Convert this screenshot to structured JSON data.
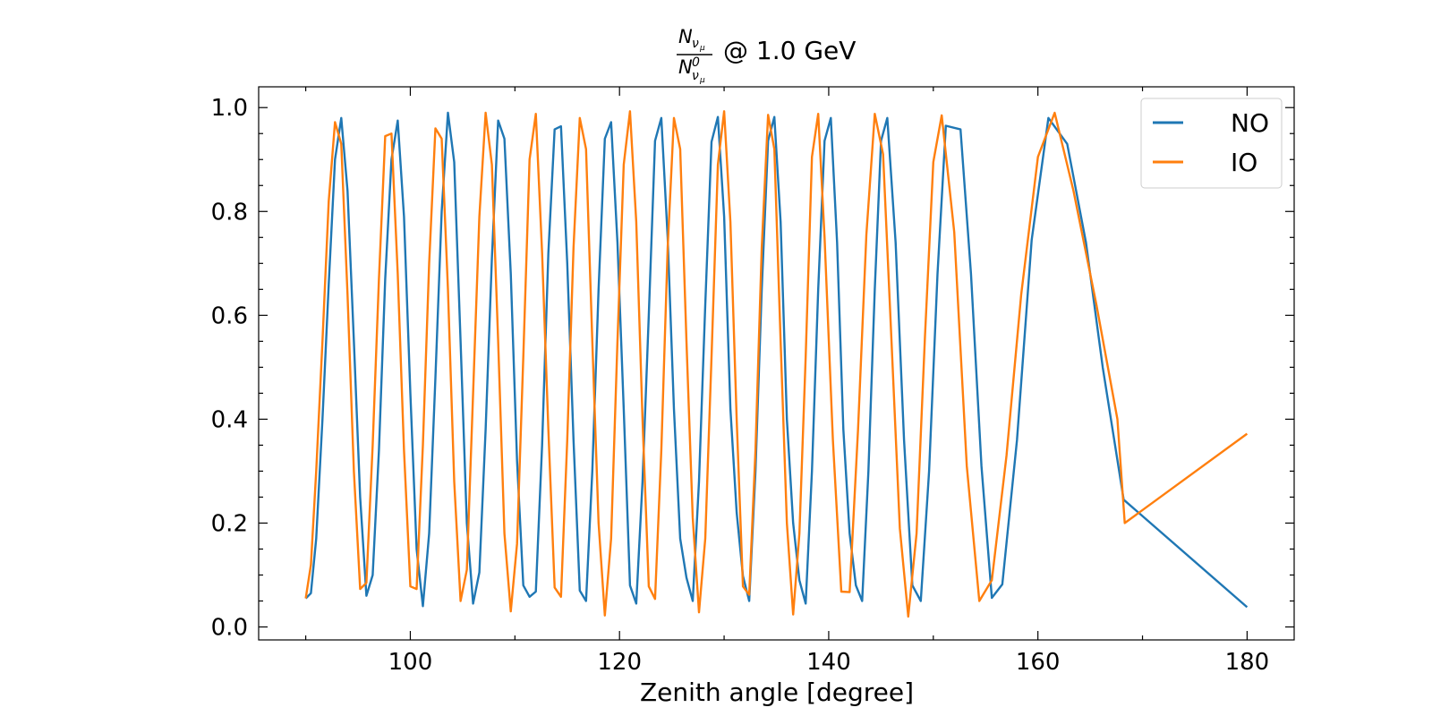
{
  "chart_data": {
    "type": "line",
    "title": {
      "numerator": "N",
      "numerator_sub": "ν",
      "numerator_subsub": "μ",
      "denominator": "N",
      "denominator_sup": "0",
      "denominator_sub": "ν",
      "denominator_subsub": "μ",
      "suffix": "@ 1.0 GeV"
    },
    "xlabel": "Zenith angle [degree]",
    "ylabel": "",
    "xlim": [
      85.5,
      184.5
    ],
    "ylim": [
      -0.025,
      1.04
    ],
    "xticks": [
      100,
      120,
      140,
      160,
      180
    ],
    "yticks": [
      0.0,
      0.2,
      0.4,
      0.6,
      0.8,
      1.0
    ],
    "xtick_labels": [
      "100",
      "120",
      "140",
      "160",
      "180"
    ],
    "ytick_labels": [
      "0.0",
      "0.2",
      "0.4",
      "0.6",
      "0.8",
      "1.0"
    ],
    "grid": false,
    "legend_position": "top-right",
    "series": [
      {
        "name": "NO",
        "color": "#1f77b4",
        "points": [
          [
            90.0,
            0.055
          ],
          [
            90.5,
            0.065
          ],
          [
            91.0,
            0.17
          ],
          [
            91.6,
            0.4
          ],
          [
            92.2,
            0.66
          ],
          [
            92.8,
            0.9
          ],
          [
            93.4,
            0.98
          ],
          [
            94.0,
            0.84
          ],
          [
            94.6,
            0.55
          ],
          [
            95.2,
            0.25
          ],
          [
            95.8,
            0.06
          ],
          [
            96.4,
            0.1
          ],
          [
            97.0,
            0.34
          ],
          [
            97.6,
            0.67
          ],
          [
            98.2,
            0.9
          ],
          [
            98.8,
            0.975
          ],
          [
            99.4,
            0.79
          ],
          [
            100.0,
            0.45
          ],
          [
            100.6,
            0.15
          ],
          [
            101.2,
            0.04
          ],
          [
            101.8,
            0.18
          ],
          [
            102.4,
            0.48
          ],
          [
            103.0,
            0.8
          ],
          [
            103.6,
            0.99
          ],
          [
            104.2,
            0.895
          ],
          [
            104.8,
            0.55
          ],
          [
            105.4,
            0.2
          ],
          [
            106.0,
            0.045
          ],
          [
            106.6,
            0.105
          ],
          [
            107.2,
            0.38
          ],
          [
            107.8,
            0.71
          ],
          [
            108.4,
            0.975
          ],
          [
            109.0,
            0.94
          ],
          [
            109.6,
            0.68
          ],
          [
            110.2,
            0.32
          ],
          [
            110.8,
            0.08
          ],
          [
            111.4,
            0.058
          ],
          [
            112.0,
            0.068
          ],
          [
            112.6,
            0.35
          ],
          [
            113.2,
            0.72
          ],
          [
            113.8,
            0.958
          ],
          [
            114.4,
            0.964
          ],
          [
            115.0,
            0.7
          ],
          [
            115.6,
            0.36
          ],
          [
            116.2,
            0.07
          ],
          [
            116.8,
            0.05
          ],
          [
            117.4,
            0.3
          ],
          [
            118.0,
            0.65
          ],
          [
            118.6,
            0.94
          ],
          [
            119.2,
            0.972
          ],
          [
            119.8,
            0.74
          ],
          [
            120.4,
            0.42
          ],
          [
            121.0,
            0.08
          ],
          [
            121.6,
            0.045
          ],
          [
            122.2,
            0.28
          ],
          [
            122.8,
            0.6
          ],
          [
            123.4,
            0.936
          ],
          [
            124.0,
            0.98
          ],
          [
            124.6,
            0.75
          ],
          [
            125.2,
            0.42
          ],
          [
            125.8,
            0.17
          ],
          [
            126.4,
            0.095
          ],
          [
            127.0,
            0.05
          ],
          [
            127.6,
            0.28
          ],
          [
            128.2,
            0.62
          ],
          [
            128.8,
            0.934
          ],
          [
            129.4,
            0.982
          ],
          [
            130.0,
            0.79
          ],
          [
            130.6,
            0.42
          ],
          [
            131.2,
            0.22
          ],
          [
            131.8,
            0.098
          ],
          [
            132.4,
            0.05
          ],
          [
            133.0,
            0.3
          ],
          [
            133.6,
            0.65
          ],
          [
            134.2,
            0.936
          ],
          [
            134.8,
            0.982
          ],
          [
            135.4,
            0.78
          ],
          [
            136.0,
            0.4
          ],
          [
            136.6,
            0.2
          ],
          [
            137.2,
            0.09
          ],
          [
            137.8,
            0.045
          ],
          [
            138.4,
            0.3
          ],
          [
            139.0,
            0.65
          ],
          [
            139.6,
            0.936
          ],
          [
            140.2,
            0.98
          ],
          [
            140.8,
            0.74
          ],
          [
            141.4,
            0.38
          ],
          [
            142.0,
            0.18
          ],
          [
            142.6,
            0.08
          ],
          [
            143.2,
            0.05
          ],
          [
            143.8,
            0.3
          ],
          [
            144.4,
            0.65
          ],
          [
            145.0,
            0.936
          ],
          [
            145.6,
            0.98
          ],
          [
            146.4,
            0.74
          ],
          [
            147.2,
            0.36
          ],
          [
            148.0,
            0.08
          ],
          [
            148.8,
            0.05
          ],
          [
            149.6,
            0.3
          ],
          [
            150.4,
            0.68
          ],
          [
            151.2,
            0.965
          ],
          [
            152.6,
            0.958
          ],
          [
            153.6,
            0.68
          ],
          [
            154.6,
            0.31
          ],
          [
            155.6,
            0.056
          ],
          [
            156.6,
            0.082
          ],
          [
            158.0,
            0.36
          ],
          [
            159.4,
            0.745
          ],
          [
            161.0,
            0.98
          ],
          [
            162.8,
            0.93
          ],
          [
            164.6,
            0.74
          ],
          [
            166.2,
            0.5
          ],
          [
            168.2,
            0.245
          ],
          [
            180.0,
            0.038
          ]
        ]
      },
      {
        "name": "IO",
        "color": "#ff7f0e",
        "points": [
          [
            90.0,
            0.055
          ],
          [
            90.5,
            0.12
          ],
          [
            91.0,
            0.3
          ],
          [
            91.6,
            0.55
          ],
          [
            92.2,
            0.82
          ],
          [
            92.8,
            0.972
          ],
          [
            93.4,
            0.93
          ],
          [
            94.0,
            0.64
          ],
          [
            94.6,
            0.3
          ],
          [
            95.2,
            0.073
          ],
          [
            95.8,
            0.085
          ],
          [
            96.4,
            0.35
          ],
          [
            97.0,
            0.67
          ],
          [
            97.6,
            0.945
          ],
          [
            98.2,
            0.95
          ],
          [
            98.8,
            0.68
          ],
          [
            99.4,
            0.34
          ],
          [
            100.0,
            0.078
          ],
          [
            100.6,
            0.073
          ],
          [
            101.2,
            0.35
          ],
          [
            101.8,
            0.7
          ],
          [
            102.4,
            0.96
          ],
          [
            103.0,
            0.94
          ],
          [
            103.6,
            0.65
          ],
          [
            104.2,
            0.28
          ],
          [
            104.8,
            0.05
          ],
          [
            105.4,
            0.11
          ],
          [
            106.0,
            0.45
          ],
          [
            106.6,
            0.79
          ],
          [
            107.2,
            0.99
          ],
          [
            107.8,
            0.89
          ],
          [
            108.4,
            0.55
          ],
          [
            109.0,
            0.18
          ],
          [
            109.6,
            0.03
          ],
          [
            110.2,
            0.16
          ],
          [
            110.8,
            0.52
          ],
          [
            111.4,
            0.9
          ],
          [
            112.0,
            0.988
          ],
          [
            112.6,
            0.72
          ],
          [
            113.2,
            0.38
          ],
          [
            113.8,
            0.076
          ],
          [
            114.4,
            0.058
          ],
          [
            115.0,
            0.36
          ],
          [
            115.6,
            0.73
          ],
          [
            116.2,
            0.98
          ],
          [
            116.8,
            0.92
          ],
          [
            117.4,
            0.55
          ],
          [
            118.0,
            0.2
          ],
          [
            118.6,
            0.022
          ],
          [
            119.2,
            0.17
          ],
          [
            119.8,
            0.55
          ],
          [
            120.4,
            0.89
          ],
          [
            121.0,
            0.993
          ],
          [
            121.6,
            0.78
          ],
          [
            122.2,
            0.4
          ],
          [
            122.8,
            0.078
          ],
          [
            123.4,
            0.054
          ],
          [
            124.0,
            0.34
          ],
          [
            124.6,
            0.73
          ],
          [
            125.2,
            0.98
          ],
          [
            125.8,
            0.92
          ],
          [
            126.4,
            0.55
          ],
          [
            127.0,
            0.21
          ],
          [
            127.6,
            0.028
          ],
          [
            128.2,
            0.17
          ],
          [
            128.8,
            0.52
          ],
          [
            129.4,
            0.89
          ],
          [
            130.0,
            0.993
          ],
          [
            130.6,
            0.78
          ],
          [
            131.2,
            0.4
          ],
          [
            131.8,
            0.078
          ],
          [
            132.4,
            0.062
          ],
          [
            133.0,
            0.34
          ],
          [
            133.6,
            0.73
          ],
          [
            134.2,
            0.986
          ],
          [
            134.8,
            0.92
          ],
          [
            135.4,
            0.55
          ],
          [
            136.0,
            0.2
          ],
          [
            136.6,
            0.024
          ],
          [
            137.2,
            0.18
          ],
          [
            137.8,
            0.52
          ],
          [
            138.4,
            0.905
          ],
          [
            139.0,
            0.988
          ],
          [
            139.6,
            0.75
          ],
          [
            140.4,
            0.36
          ],
          [
            141.2,
            0.068
          ],
          [
            142.0,
            0.067
          ],
          [
            142.8,
            0.38
          ],
          [
            143.6,
            0.755
          ],
          [
            144.4,
            0.988
          ],
          [
            145.2,
            0.91
          ],
          [
            146.0,
            0.55
          ],
          [
            146.8,
            0.19
          ],
          [
            147.6,
            0.02
          ],
          [
            148.4,
            0.18
          ],
          [
            149.2,
            0.56
          ],
          [
            150.0,
            0.895
          ],
          [
            150.8,
            0.985
          ],
          [
            152.0,
            0.76
          ],
          [
            153.2,
            0.31
          ],
          [
            154.4,
            0.05
          ],
          [
            155.6,
            0.09
          ],
          [
            157.0,
            0.33
          ],
          [
            158.4,
            0.64
          ],
          [
            160.0,
            0.905
          ],
          [
            161.6,
            0.99
          ],
          [
            163.4,
            0.84
          ],
          [
            165.6,
            0.62
          ],
          [
            167.6,
            0.4
          ],
          [
            168.3,
            0.2
          ],
          [
            180.0,
            0.372
          ]
        ]
      }
    ]
  }
}
